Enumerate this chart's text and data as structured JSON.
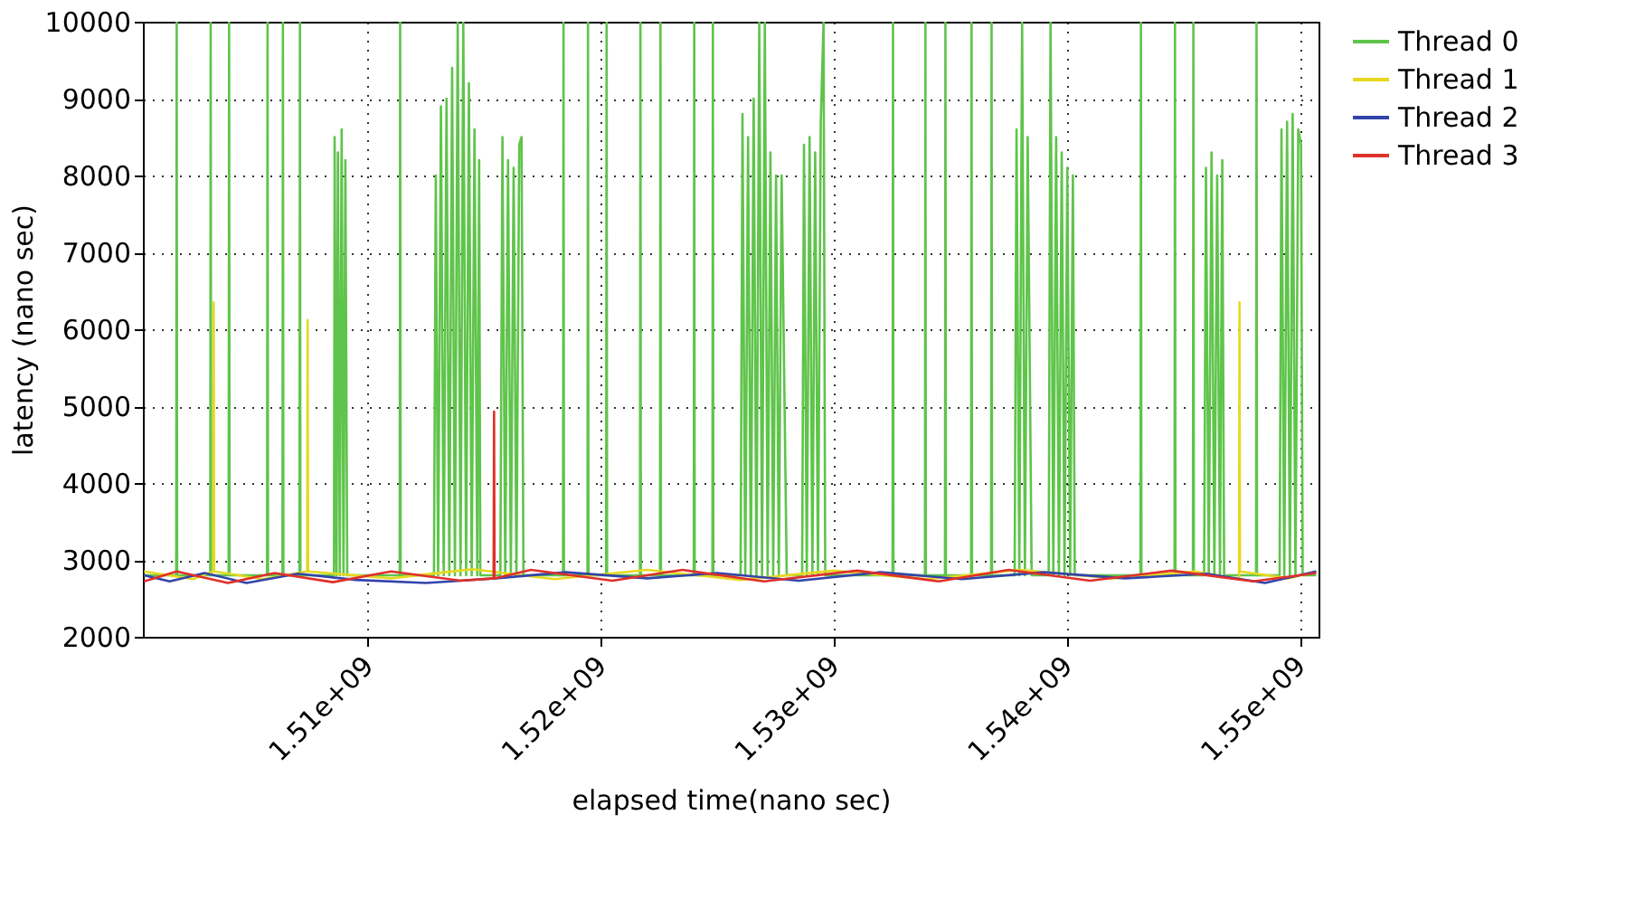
{
  "chart_data": {
    "type": "line",
    "xlabel": "elapsed time(nano sec)",
    "ylabel": "latency (nano sec)",
    "xlim": [
      1500350000.0,
      1550800000.0
    ],
    "ylim": [
      2000,
      10000
    ],
    "xticks": [
      {
        "value": 1510000000.0,
        "label": "1.51e+09"
      },
      {
        "value": 1520000000.0,
        "label": "1.52e+09"
      },
      {
        "value": 1530000000.0,
        "label": "1.53e+09"
      },
      {
        "value": 1540000000.0,
        "label": "1.54e+09"
      },
      {
        "value": 1550000000.0,
        "label": "1.55e+09"
      }
    ],
    "yticks": [
      2000,
      3000,
      4000,
      5000,
      6000,
      7000,
      8000,
      9000,
      10000
    ],
    "grid": true,
    "legend": "right",
    "line_style": "solid",
    "series": [
      {
        "name": "Thread 0",
        "color": "#5fc44b",
        "x": [
          1500400000.0,
          1501780000.0,
          1501800000.0,
          1501820000.0,
          1503240000.0,
          1503260000.0,
          1503280000.0,
          1504030000.0,
          1504050000.0,
          1504070000.0,
          1505680000.0,
          1505700000.0,
          1505720000.0,
          1506340000.0,
          1506360000.0,
          1506380000.0,
          1507070000.0,
          1507090000.0,
          1507110000.0,
          1508550000.0,
          1508580000.0,
          1508660000.0,
          1508720000.0,
          1508800000.0,
          1508880000.0,
          1508960000.0,
          1509040000.0,
          1509120000.0,
          1511370000.0,
          1511390000.0,
          1511410000.0,
          1512840000.0,
          1512920000.0,
          1513020000.0,
          1513140000.0,
          1513260000.0,
          1513380000.0,
          1513500000.0,
          1513620000.0,
          1513740000.0,
          1513860000.0,
          1513980000.0,
          1514100000.0,
          1514220000.0,
          1514340000.0,
          1514460000.0,
          1514580000.0,
          1514700000.0,
          1514780000.0,
          1514830000.0,
          1515690000.0,
          1515780000.0,
          1515900000.0,
          1516020000.0,
          1516140000.0,
          1516260000.0,
          1516380000.0,
          1516500000.0,
          1516600000.0,
          1516680000.0,
          1518380000.0,
          1518400000.0,
          1518420000.0,
          1519430000.0,
          1519450000.0,
          1519470000.0,
          1520230000.0,
          1520250000.0,
          1520270000.0,
          1521680000.0,
          1521700000.0,
          1521720000.0,
          1522540000.0,
          1522560000.0,
          1522580000.0,
          1523990000.0,
          1524010000.0,
          1524030000.0,
          1524790000.0,
          1524810000.0,
          1524830000.0,
          1526000000.0,
          1526080000.0,
          1526200000.0,
          1526320000.0,
          1526440000.0,
          1526560000.0,
          1526680000.0,
          1526800000.0,
          1526920000.0,
          1527040000.0,
          1527160000.0,
          1527280000.0,
          1527400000.0,
          1527520000.0,
          1527640000.0,
          1527760000.0,
          1527980000.0,
          1528640000.0,
          1528720000.0,
          1528840000.0,
          1528960000.0,
          1529080000.0,
          1529200000.0,
          1529320000.0,
          1529440000.0,
          1529560000.0,
          1529630000.0,
          1532520000.0,
          1532540000.0,
          1532560000.0,
          1533910000.0,
          1533930000.0,
          1533950000.0,
          1534770000.0,
          1534790000.0,
          1534810000.0,
          1535890000.0,
          1535910000.0,
          1535930000.0,
          1536750000.0,
          1536770000.0,
          1536790000.0,
          1537760000.0,
          1537840000.0,
          1537960000.0,
          1538080000.0,
          1538200000.0,
          1538320000.0,
          1538490000.0,
          1539220000.0,
          1539300000.0,
          1539420000.0,
          1539540000.0,
          1539660000.0,
          1539780000.0,
          1539900000.0,
          1540020000.0,
          1540140000.0,
          1540260000.0,
          1540340000.0,
          1543160000.0,
          1543180000.0,
          1543200000.0,
          1544620000.0,
          1544640000.0,
          1544660000.0,
          1545410000.0,
          1545430000.0,
          1545450000.0,
          1545890000.0,
          1545970000.0,
          1546090000.0,
          1546210000.0,
          1546330000.0,
          1546450000.0,
          1546570000.0,
          1546670000.0,
          1546750000.0,
          1548120000.0,
          1548140000.0,
          1548160000.0,
          1549130000.0,
          1549210000.0,
          1549330000.0,
          1549450000.0,
          1549570000.0,
          1549690000.0,
          1549810000.0,
          1549930000.0,
          1550050000.0,
          1550120000.0,
          1550700000.0
        ],
        "values": [
          2800,
          2800,
          10000,
          2800,
          2800,
          10000,
          2800,
          2800,
          10000,
          2800,
          2800,
          10000,
          2800,
          2800,
          10000,
          2800,
          2800,
          10000,
          2800,
          2800,
          8500,
          2800,
          8300,
          2800,
          8600,
          2800,
          8200,
          2800,
          2800,
          10000,
          2800,
          2800,
          8000,
          2800,
          8900,
          2800,
          9000,
          2800,
          9400,
          2800,
          10000,
          2800,
          10000,
          2800,
          9200,
          2800,
          8600,
          2800,
          8200,
          2800,
          2800,
          8500,
          2800,
          8200,
          2800,
          8100,
          2800,
          8400,
          8500,
          2800,
          2800,
          10000,
          2800,
          2800,
          10000,
          2800,
          2800,
          10000,
          2800,
          2800,
          10000,
          2800,
          2800,
          10000,
          2800,
          2800,
          10000,
          2800,
          2800,
          10000,
          2800,
          2800,
          8800,
          2800,
          8500,
          2800,
          9000,
          2800,
          10000,
          2800,
          10000,
          2800,
          8300,
          2800,
          8000,
          2800,
          8000,
          2800,
          2800,
          8400,
          2800,
          8500,
          2800,
          8300,
          2800,
          8700,
          10000,
          2800,
          2800,
          10000,
          2800,
          2800,
          10000,
          2800,
          2800,
          10000,
          2800,
          2800,
          10000,
          2800,
          2800,
          10000,
          2800,
          2800,
          8600,
          2800,
          10000,
          2800,
          8500,
          2800,
          2800,
          10000,
          2800,
          8500,
          2800,
          8300,
          2800,
          8100,
          2800,
          8000,
          2800,
          2800,
          10000,
          2800,
          2800,
          10000,
          2800,
          2800,
          10000,
          2800,
          2800,
          8100,
          2800,
          8300,
          2800,
          8000,
          2800,
          8200,
          2800,
          2800,
          10000,
          2800,
          2800,
          8600,
          2800,
          8700,
          2800,
          8800,
          2800,
          8600,
          8400,
          2800,
          2800
        ]
      },
      {
        "name": "Thread 1",
        "color": "#e6d820",
        "x": [
          1500400000.0,
          1502500000.0,
          1503370000.0,
          1503390000.0,
          1503410000.0,
          1505500000.0,
          1507400000.0,
          1507420000.0,
          1507440000.0,
          1511000000.0,
          1514500000.0,
          1518000000.0,
          1522000000.0,
          1526000000.0,
          1530000000.0,
          1534000000.0,
          1538000000.0,
          1542000000.0,
          1545500000.0,
          1547390000.0,
          1547410000.0,
          1547430000.0,
          1549500000.0,
          1550700000.0
        ],
        "values": [
          2850,
          2750,
          2850,
          6350,
          2850,
          2750,
          2850,
          6120,
          2850,
          2760,
          2880,
          2750,
          2870,
          2740,
          2860,
          2750,
          2870,
          2760,
          2850,
          2750,
          6350,
          2850,
          2760,
          2850
        ]
      },
      {
        "name": "Thread 2",
        "color": "#3344aa",
        "x": [
          1500400000.0,
          1501500000.0,
          1503000000.0,
          1504800000.0,
          1507000000.0,
          1509500000.0,
          1512500000.0,
          1515500000.0,
          1518500000.0,
          1522000000.0,
          1525000000.0,
          1528500000.0,
          1532000000.0,
          1535500000.0,
          1539000000.0,
          1542500000.0,
          1546000000.0,
          1548500000.0,
          1550700000.0
        ],
        "values": [
          2800,
          2720,
          2830,
          2700,
          2820,
          2740,
          2700,
          2760,
          2840,
          2760,
          2830,
          2730,
          2840,
          2750,
          2840,
          2760,
          2820,
          2700,
          2850
        ]
      },
      {
        "name": "Thread 3",
        "color": "#e0302a",
        "x": [
          1500400000.0,
          1501800000.0,
          1504000000.0,
          1506000000.0,
          1508500000.0,
          1511000000.0,
          1514000000.0,
          1515400000.0,
          1515420000.0,
          1515440000.0,
          1517000000.0,
          1520500000.0,
          1523500000.0,
          1527000000.0,
          1531000000.0,
          1534500000.0,
          1537500000.0,
          1541000000.0,
          1544500000.0,
          1548000000.0,
          1550700000.0
        ],
        "values": [
          2720,
          2850,
          2700,
          2830,
          2710,
          2850,
          2730,
          2760,
          4930,
          2760,
          2870,
          2730,
          2870,
          2720,
          2860,
          2720,
          2870,
          2730,
          2860,
          2720,
          2830
        ]
      }
    ]
  }
}
